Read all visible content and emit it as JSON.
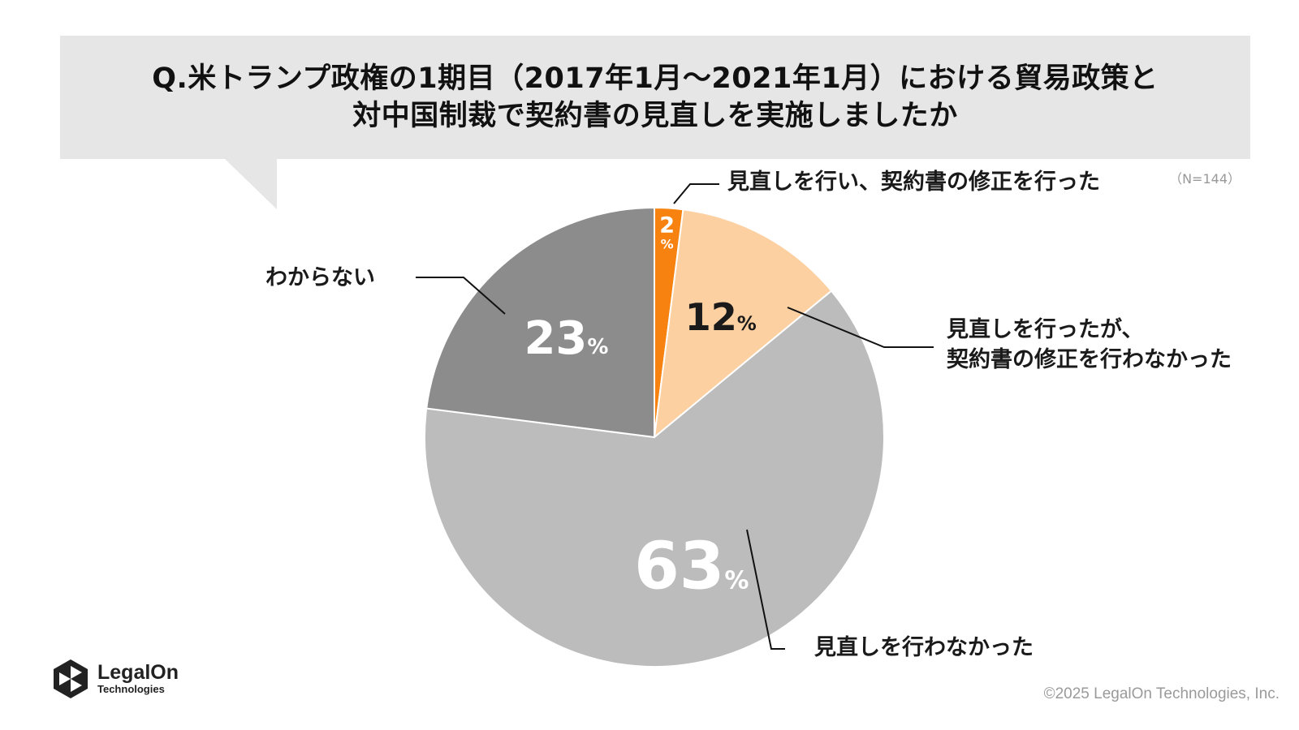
{
  "title": {
    "line1": "Q.米トランプ政権の1期目（2017年1月～2021年1月）における貿易政策と",
    "line2": "対中国制裁で契約書の見直しを実施しましたか"
  },
  "sample_size": "（N=144）",
  "chart_data": {
    "type": "pie",
    "start_angle_deg": 0,
    "direction": "clockwise",
    "percent_sign": "%",
    "slices": [
      {
        "label": "見直しを行い、契約書の修正を行った",
        "value": 2,
        "color": "#f7820f",
        "value_color": "#ffffff"
      },
      {
        "label_lines": [
          "見直しを行ったが、",
          "契約書の修正を行わなかった"
        ],
        "value": 12,
        "color": "#fdd0a2",
        "value_color": "#1a1a1a"
      },
      {
        "label": "見直しを行わなかった",
        "value": 63,
        "color": "#bcbcbc",
        "value_color": "#ffffff"
      },
      {
        "label": "わからない",
        "value": 23,
        "color": "#8c8c8c",
        "value_color": "#ffffff"
      }
    ]
  },
  "logo": {
    "name": "LegalOn",
    "sub": "Technologies"
  },
  "copyright": "©2025 LegalOn Technologies, Inc."
}
